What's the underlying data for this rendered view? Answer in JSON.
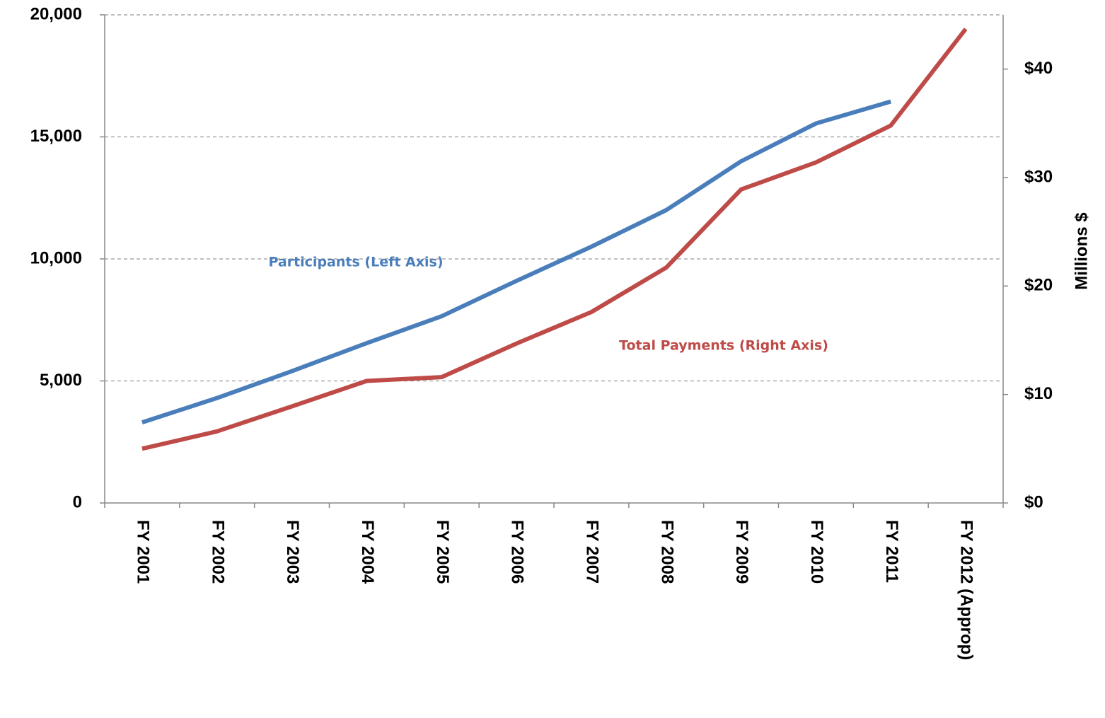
{
  "chart_data": {
    "type": "line",
    "categories": [
      "FY 2001",
      "FY 2002",
      "FY 2003",
      "FY 2004",
      "FY 2005",
      "FY 2006",
      "FY 2007",
      "FY 2008",
      "FY 2009",
      "FY 2010",
      "FY 2011",
      "FY 2012 (Approp)"
    ],
    "series": [
      {
        "name": "Participants (Left Axis)",
        "color": "#4a7ebb",
        "values": [
          3300,
          4300,
          5400,
          6550,
          7650,
          9100,
          10500,
          12000,
          14000,
          15550,
          16450,
          null
        ]
      },
      {
        "name": "Total Payments (Right Axis)",
        "color": "#be4b48",
        "axis": "y2",
        "values": [
          5.0,
          6.6,
          8.9,
          11.25,
          11.6,
          14.7,
          17.6,
          21.7,
          28.9,
          31.4,
          34.8,
          43.7
        ]
      }
    ],
    "ylim": [
      0,
      20000
    ],
    "yticks": [
      0,
      {
        "value": 5000,
        "label": "5,000"
      },
      {
        "value": 10000,
        "label": "10,000"
      },
      {
        "value": 15000,
        "label": "15,000"
      },
      {
        "value": 20000,
        "label": "20,000"
      }
    ],
    "y2lim": [
      0,
      45
    ],
    "y2ticks": [
      {
        "value": 0,
        "label": "$0"
      },
      {
        "value": 10,
        "label": "$10"
      },
      {
        "value": 20,
        "label": "$20"
      },
      {
        "value": 30,
        "label": "$30"
      },
      {
        "value": 40,
        "label": "$40"
      }
    ],
    "y2label": "Millions $",
    "grid": true
  }
}
